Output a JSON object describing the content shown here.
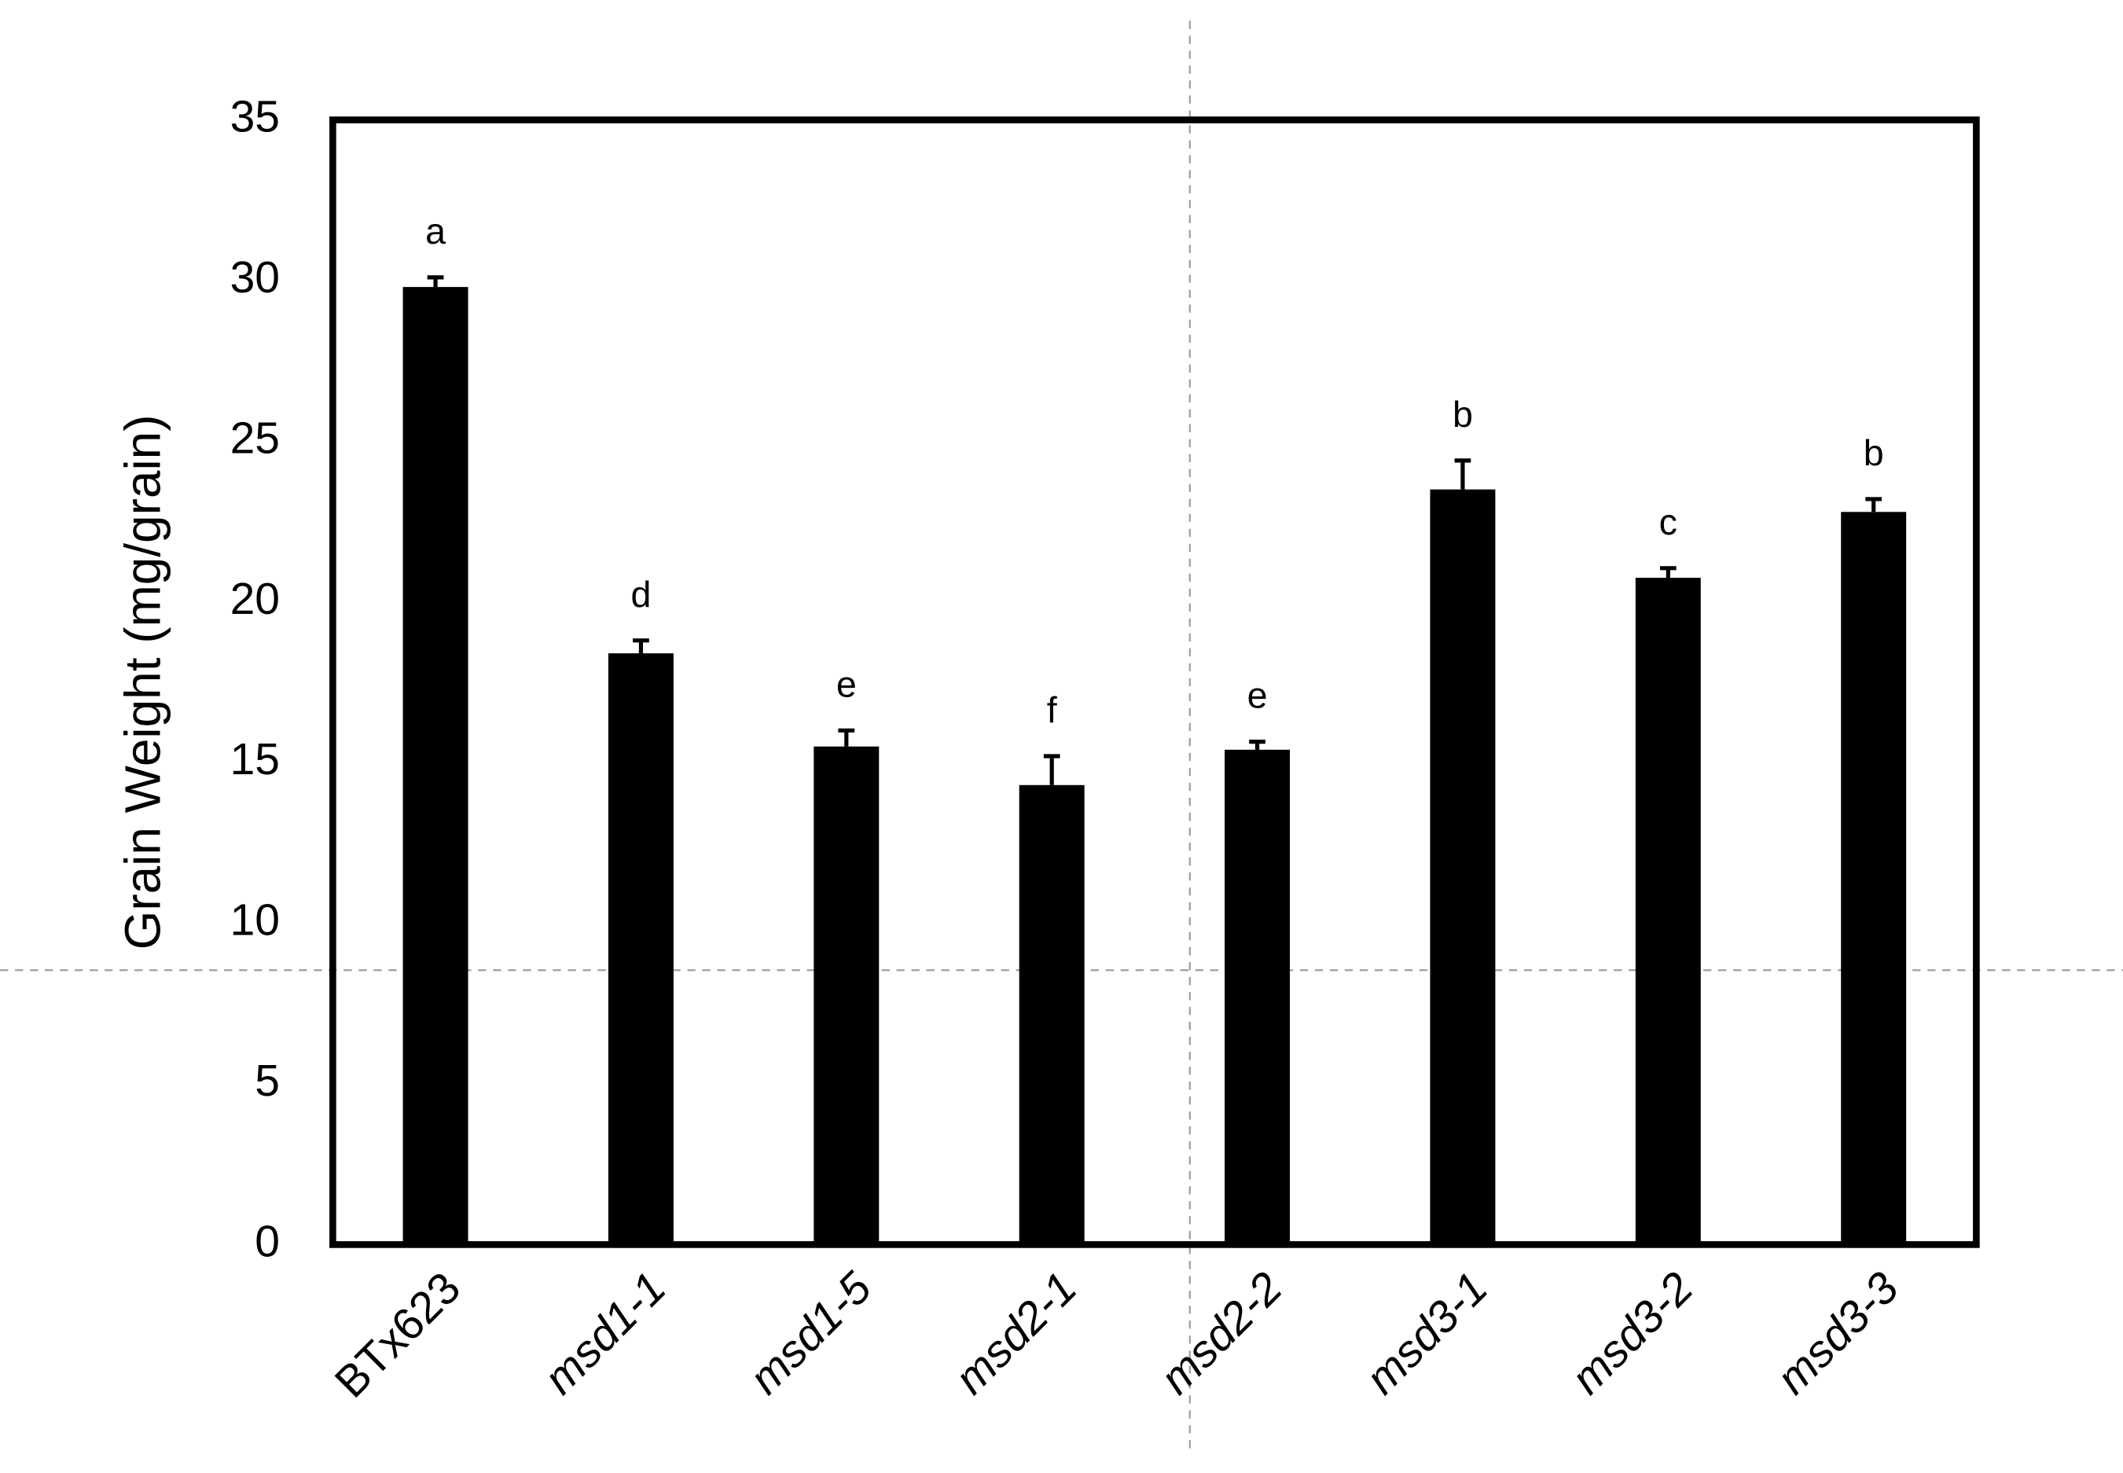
{
  "chart_data": {
    "type": "bar",
    "y_label": "Grain Weight (mg/grain)",
    "categories": [
      "BTx623",
      "msd1-1",
      "msd1-5",
      "msd2-1",
      "msd2-2",
      "msd3-1",
      "msd3-2",
      "msd3-3"
    ],
    "italic_categories": [
      false,
      true,
      true,
      true,
      true,
      true,
      true,
      true
    ],
    "values": [
      29.8,
      18.4,
      15.5,
      14.3,
      15.4,
      23.5,
      20.75,
      22.8
    ],
    "errors": [
      0.3,
      0.4,
      0.5,
      0.9,
      0.25,
      0.9,
      0.3,
      0.4
    ],
    "significance_letters": [
      "a",
      "d",
      "e",
      "f",
      "e",
      "b",
      "c",
      "b"
    ],
    "color": "#000000",
    "ylim": [
      0,
      35
    ],
    "yticks": [
      0,
      5,
      10,
      15,
      20,
      25,
      30,
      35
    ],
    "grid": false
  }
}
